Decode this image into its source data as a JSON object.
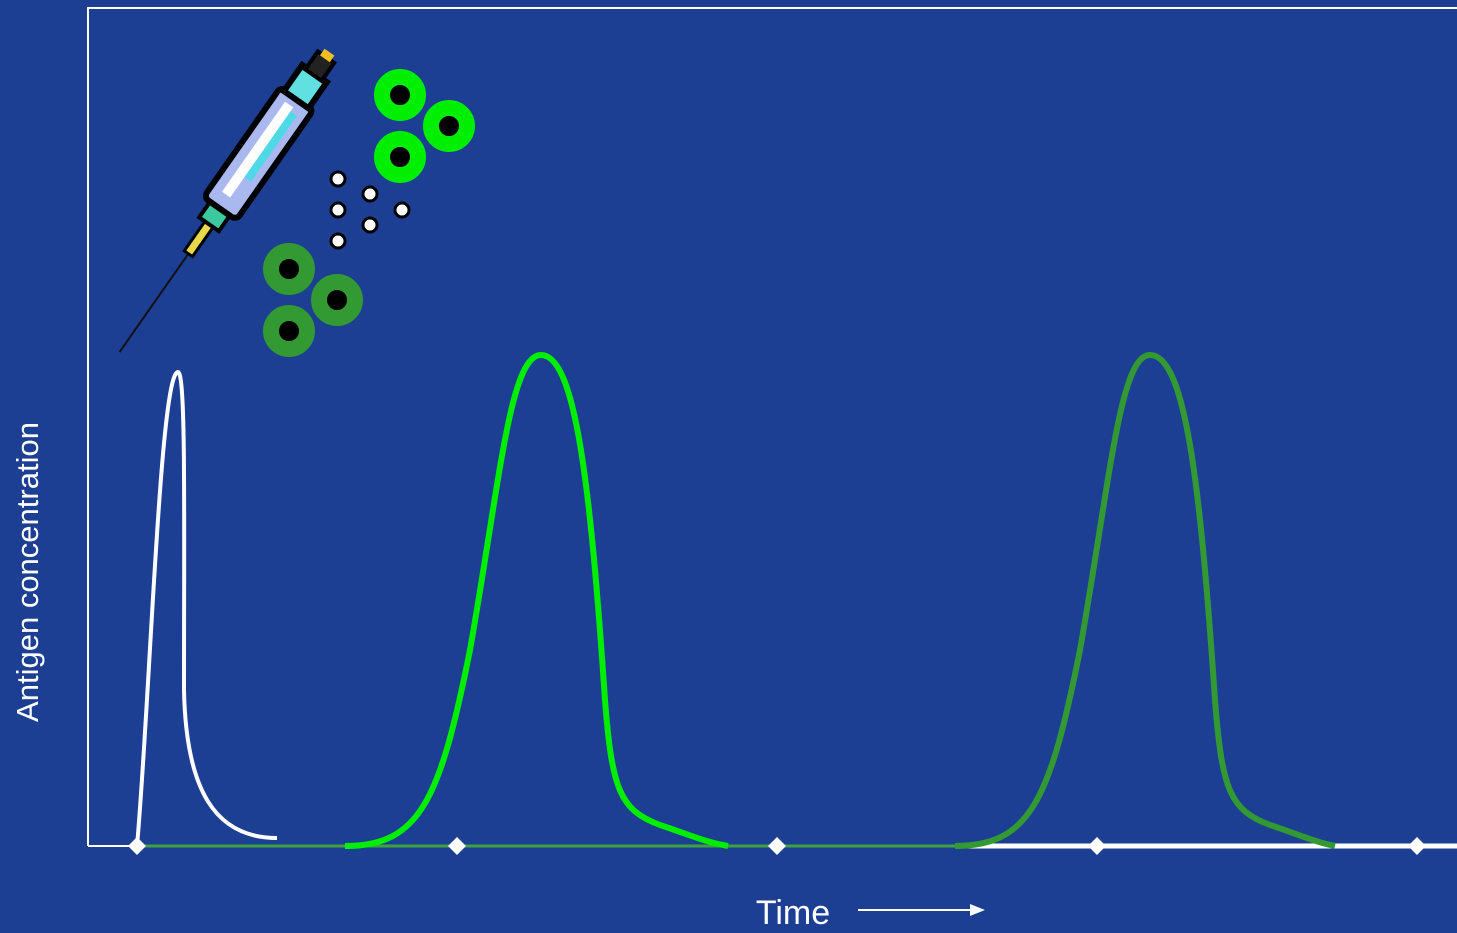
{
  "y_axis_label": "Antigen concentration",
  "x_axis_label": "Time"
}
